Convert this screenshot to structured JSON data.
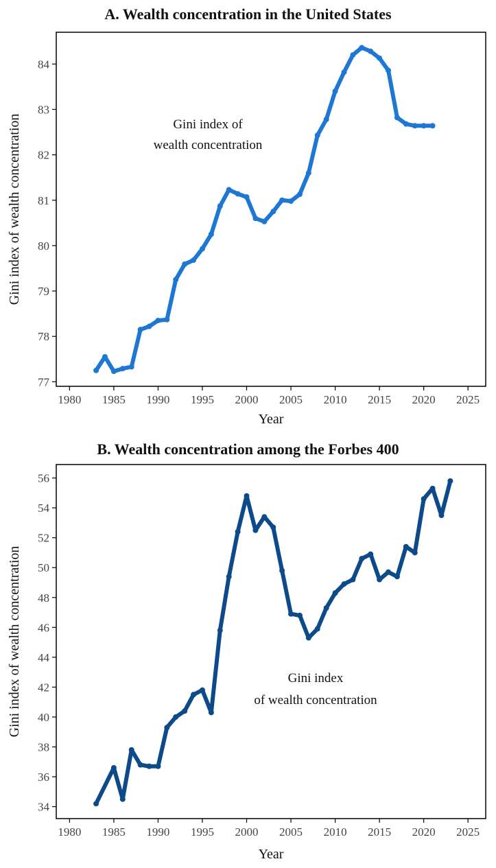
{
  "chart_data": [
    {
      "type": "line",
      "title": "A. Wealth concentration in the United States",
      "xlabel": "Year",
      "ylabel": "Gini index of wealth concentration",
      "xlim": [
        1978.5,
        2027
      ],
      "ylim": [
        76.9,
        84.7
      ],
      "xticks": [
        1980,
        1985,
        1990,
        1995,
        2000,
        2005,
        2010,
        2015,
        2020,
        2025
      ],
      "yticks": [
        77,
        78,
        79,
        80,
        81,
        82,
        83,
        84
      ],
      "color": "#1f77d4",
      "annotation": [
        "Gini index of",
        "wealth concentration"
      ],
      "series": [
        {
          "x": [
            1983,
            1984,
            1985,
            1986,
            1987,
            1988,
            1989,
            1990,
            1991,
            1992,
            1993,
            1994,
            1995,
            1996,
            1997,
            1998,
            1999,
            2000,
            2001,
            2002,
            2003,
            2004,
            2005,
            2006,
            2007,
            2008,
            2009,
            2010,
            2011,
            2012,
            2013,
            2014,
            2015,
            2016,
            2017,
            2018,
            2019,
            2020,
            2021
          ],
          "values": [
            77.25,
            77.55,
            77.23,
            77.29,
            77.33,
            78.15,
            78.22,
            78.35,
            78.37,
            79.25,
            79.59,
            79.68,
            79.93,
            80.25,
            80.87,
            81.23,
            81.14,
            81.07,
            80.6,
            80.53,
            80.75,
            81.0,
            80.98,
            81.13,
            81.6,
            82.43,
            82.78,
            83.4,
            83.82,
            84.2,
            84.36,
            84.28,
            84.13,
            83.86,
            82.82,
            82.68,
            82.64,
            82.64,
            82.64
          ]
        }
      ]
    },
    {
      "type": "line",
      "title": "B. Wealth concentration among the Forbes 400",
      "xlabel": "Year",
      "ylabel": "Gini index of wealth concentration",
      "xlim": [
        1978.5,
        2027
      ],
      "ylim": [
        33.2,
        56.9
      ],
      "xticks": [
        1980,
        1985,
        1990,
        1995,
        2000,
        2005,
        2010,
        2015,
        2020,
        2025
      ],
      "yticks": [
        34,
        36,
        38,
        40,
        42,
        44,
        46,
        48,
        50,
        52,
        54,
        56
      ],
      "color": "#0d4a8a",
      "annotation": [
        "Gini index",
        "of wealth concentration"
      ],
      "series": [
        {
          "x": [
            1983,
            1985,
            1986,
            1987,
            1988,
            1989,
            1990,
            1991,
            1992,
            1993,
            1994,
            1995,
            1996,
            1997,
            1998,
            1999,
            2000,
            2001,
            2002,
            2003,
            2004,
            2005,
            2006,
            2007,
            2008,
            2009,
            2010,
            2011,
            2012,
            2013,
            2014,
            2015,
            2016,
            2017,
            2018,
            2019,
            2020,
            2021,
            2022,
            2023
          ],
          "values": [
            34.2,
            36.6,
            34.5,
            37.8,
            36.8,
            36.7,
            36.7,
            39.3,
            40.0,
            40.4,
            41.5,
            41.8,
            40.3,
            45.8,
            49.4,
            52.4,
            54.8,
            52.5,
            53.4,
            52.7,
            49.8,
            46.9,
            46.8,
            45.3,
            45.9,
            47.3,
            48.3,
            48.9,
            49.2,
            50.6,
            50.9,
            49.2,
            49.7,
            49.4,
            51.4,
            51.0,
            54.6,
            55.3,
            53.5,
            55.8
          ]
        }
      ]
    }
  ]
}
